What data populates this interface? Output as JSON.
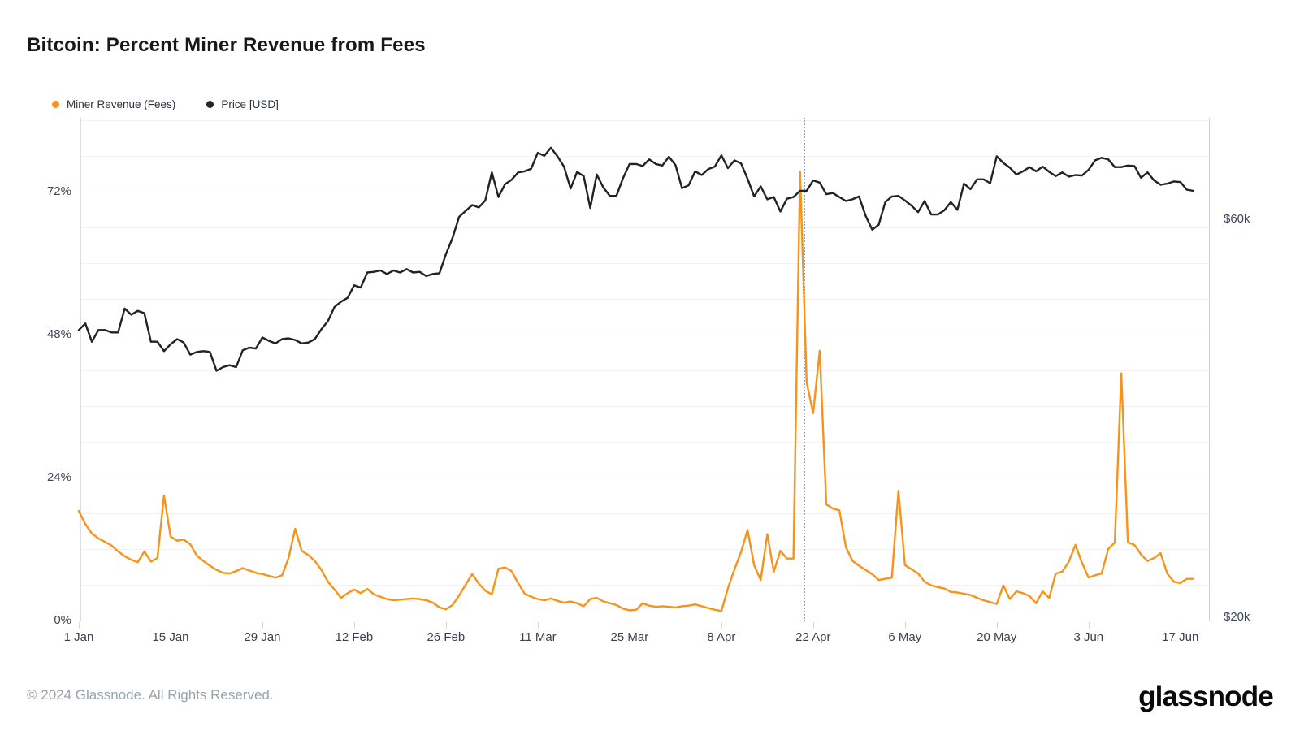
{
  "title": "Bitcoin: Percent Miner Revenue from Fees",
  "legend": [
    {
      "label": "Miner Revenue (Fees)",
      "color": "#f7931a"
    },
    {
      "label": "Price [USD]",
      "color": "#23252b"
    }
  ],
  "footer": {
    "copyright": "© 2024 Glassnode. All Rights Reserved.",
    "brand": "glassnode"
  },
  "colors": {
    "fees_line": "#f7931a",
    "price_line": "#202227",
    "gridline": "#f2f2f3",
    "plot_left_border": "#f8d7ab",
    "dotted_marker": "#969ea9"
  },
  "chart_data": {
    "type": "line",
    "title": "Bitcoin: Percent Miner Revenue from Fees",
    "x_start_date": "1 Jan",
    "x_end_date": "19 Jun",
    "x_tick_labels": [
      "1 Jan",
      "15 Jan",
      "29 Jan",
      "12 Feb",
      "26 Feb",
      "11 Mar",
      "25 Mar",
      "8 Apr",
      "22 Apr",
      "6 May",
      "20 May",
      "3 Jun",
      "17 Jun"
    ],
    "x_tick_day_index": [
      0,
      14,
      28,
      42,
      56,
      70,
      84,
      98,
      112,
      126,
      140,
      154,
      168
    ],
    "left_axis": {
      "unit": "%",
      "tick_labels": [
        "0%",
        "24%",
        "48%",
        "72%"
      ],
      "tick_values": [
        0,
        24,
        48,
        72
      ],
      "minor_grid_step": 6,
      "range": [
        0,
        84.5
      ]
    },
    "right_axis": {
      "unit": "USD",
      "scale": "log",
      "tick_labels": [
        "$20k",
        "$60k"
      ],
      "tick_values_k": [
        20,
        60
      ]
    },
    "dotted_vline_day_index": 110.5,
    "legend_position": "top-left",
    "grid": "horizontal-only",
    "series": [
      {
        "name": "Miner Revenue (Fees)",
        "axis": "left",
        "unit": "percent",
        "color": "#f7931a",
        "values": [
          18.4,
          16.2,
          14.6,
          13.8,
          13.2,
          12.6,
          11.6,
          10.8,
          10.2,
          9.8,
          11.6,
          9.9,
          10.5,
          21.0,
          14.1,
          13.4,
          13.6,
          12.8,
          10.9,
          10.0,
          9.2,
          8.5,
          8.0,
          7.9,
          8.3,
          8.8,
          8.4,
          8.0,
          7.8,
          7.5,
          7.2,
          7.6,
          10.5,
          15.4,
          11.7,
          11.0,
          10.0,
          8.5,
          6.5,
          5.2,
          3.8,
          4.6,
          5.2,
          4.6,
          5.3,
          4.4,
          4.0,
          3.6,
          3.4,
          3.5,
          3.6,
          3.7,
          3.6,
          3.4,
          3.0,
          2.2,
          1.9,
          2.6,
          4.2,
          6.0,
          7.8,
          6.2,
          5.0,
          4.4,
          8.7,
          8.9,
          8.3,
          6.3,
          4.5,
          4.0,
          3.6,
          3.4,
          3.7,
          3.3,
          3.0,
          3.2,
          2.9,
          2.4,
          3.6,
          3.8,
          3.2,
          2.9,
          2.6,
          2.0,
          1.7,
          1.8,
          2.9,
          2.5,
          2.3,
          2.4,
          2.3,
          2.2,
          2.4,
          2.5,
          2.7,
          2.4,
          2.1,
          1.8,
          1.6,
          5.4,
          8.6,
          11.5,
          15.2,
          9.3,
          6.8,
          14.5,
          8.2,
          11.7,
          10.4,
          10.4,
          75.4,
          40.0,
          34.8,
          45.3,
          19.5,
          18.8,
          18.5,
          12.3,
          10.0,
          9.2,
          8.5,
          7.8,
          6.8,
          7.0,
          7.2,
          21.8,
          9.3,
          8.6,
          7.9,
          6.5,
          5.9,
          5.6,
          5.4,
          4.8,
          4.7,
          4.5,
          4.3,
          3.8,
          3.4,
          3.1,
          2.8,
          5.9,
          3.6,
          4.9,
          4.6,
          4.1,
          2.9,
          4.9,
          3.8,
          7.9,
          8.2,
          9.9,
          12.7,
          9.7,
          7.2,
          7.6,
          7.9,
          12.0,
          13.1,
          41.5,
          13.1,
          12.7,
          11.1,
          10.0,
          10.5,
          11.3,
          7.9,
          6.5,
          6.3,
          7.0,
          7.0
        ]
      },
      {
        "name": "Price [USD]",
        "axis": "right",
        "unit": "USD-thousands",
        "color": "#202227",
        "values": [
          44.2,
          45.0,
          42.8,
          44.2,
          44.2,
          43.9,
          43.9,
          46.9,
          46.1,
          46.6,
          46.3,
          42.8,
          42.8,
          41.7,
          42.5,
          43.1,
          42.7,
          41.3,
          41.6,
          41.7,
          41.6,
          39.5,
          39.9,
          40.1,
          39.9,
          41.8,
          42.1,
          42.0,
          43.3,
          42.9,
          42.6,
          43.1,
          43.2,
          43.0,
          42.6,
          42.7,
          43.1,
          44.3,
          45.3,
          47.1,
          47.8,
          48.3,
          50.0,
          49.7,
          51.8,
          51.9,
          52.1,
          51.6,
          52.1,
          51.8,
          52.3,
          51.8,
          51.9,
          51.3,
          51.6,
          51.7,
          54.5,
          57.0,
          60.4,
          61.4,
          62.4,
          62.0,
          63.2,
          68.3,
          63.8,
          66.1,
          66.9,
          68.3,
          68.5,
          69.0,
          72.1,
          71.5,
          73.1,
          71.4,
          69.4,
          65.3,
          68.4,
          67.6,
          61.9,
          67.9,
          65.5,
          64.0,
          64.0,
          67.2,
          69.9,
          69.9,
          69.5,
          70.8,
          69.9,
          69.6,
          71.3,
          69.7,
          65.4,
          65.9,
          68.5,
          67.8,
          68.9,
          69.4,
          71.6,
          69.1,
          70.6,
          70.0,
          67.1,
          63.9,
          65.7,
          63.4,
          63.8,
          61.3,
          63.5,
          63.8,
          64.9,
          64.9,
          66.8,
          66.4,
          64.3,
          64.5,
          63.8,
          63.1,
          63.4,
          63.9,
          60.6,
          58.3,
          59.1,
          62.9,
          63.9,
          64.0,
          63.2,
          62.3,
          61.2,
          63.1,
          60.8,
          60.8,
          61.5,
          62.9,
          61.6,
          66.2,
          65.2,
          67.0,
          67.0,
          66.3,
          71.4,
          70.1,
          69.2,
          67.9,
          68.5,
          69.3,
          68.5,
          69.4,
          68.4,
          67.6,
          68.3,
          67.5,
          67.8,
          67.7,
          68.8,
          70.6,
          71.1,
          70.8,
          69.3,
          69.3,
          69.6,
          69.5,
          67.3,
          68.3,
          66.8,
          66.0,
          66.2,
          66.6,
          66.5,
          65.1,
          64.9
        ]
      }
    ]
  }
}
